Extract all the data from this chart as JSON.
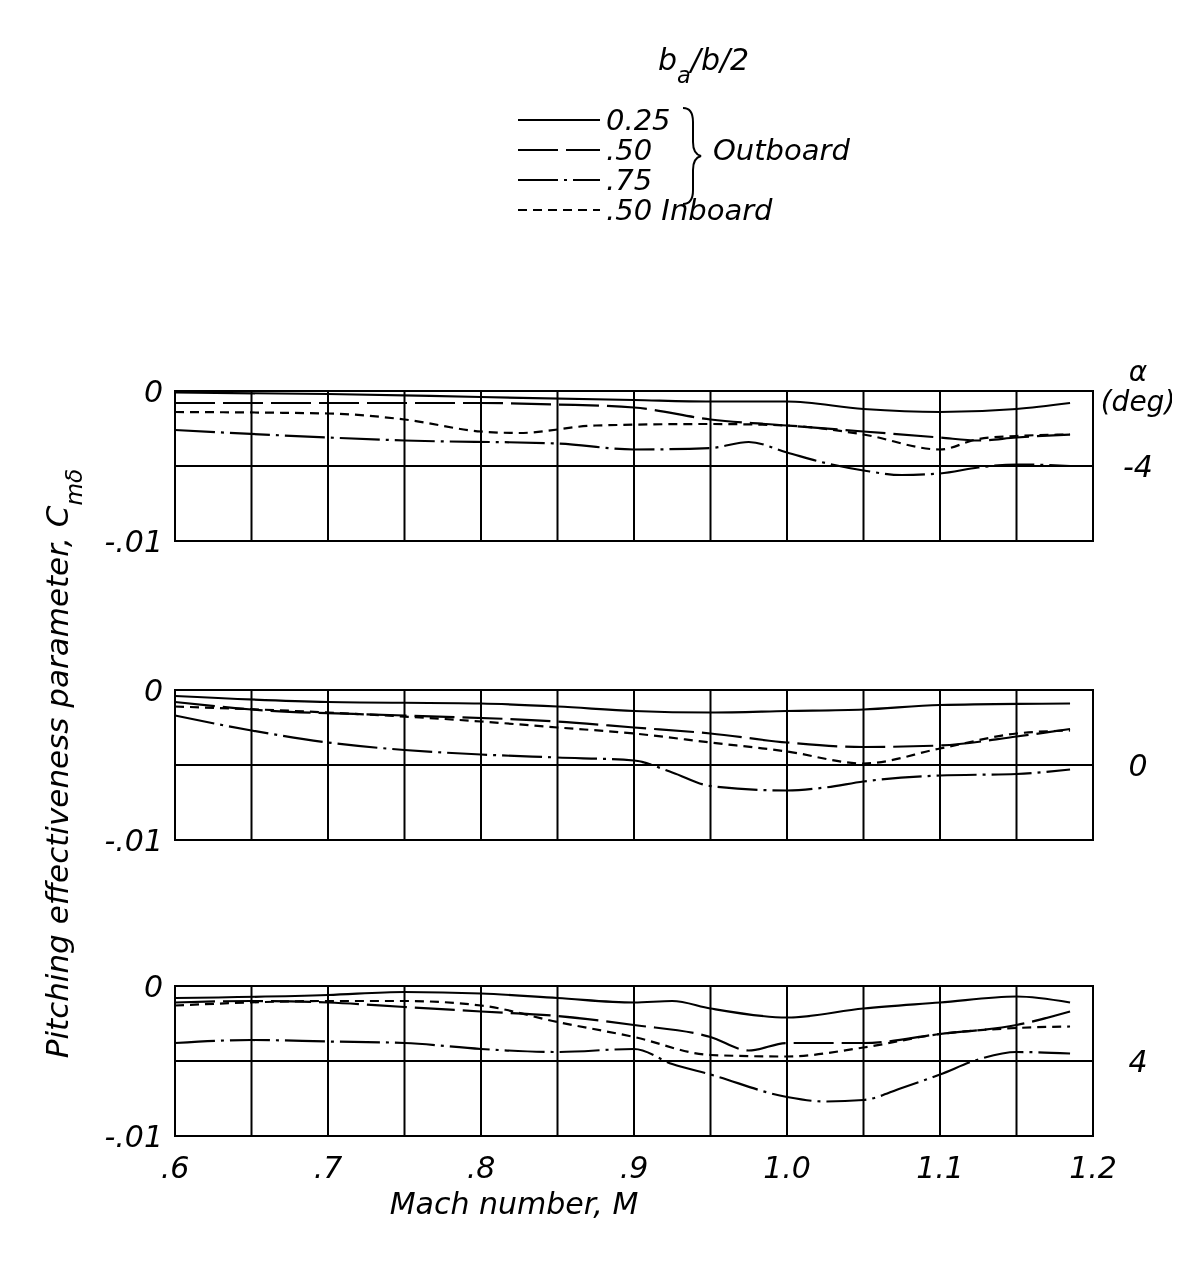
{
  "chart_data": [
    {
      "type": "line",
      "ylabel": "Pitching effectiveness parameter, C$_{mδ}$",
      "y2label": "α (deg)",
      "legend_title": "b$_{a}$/b/2",
      "legend": "top",
      "annotations": [
        "Outboard",
        "-4"
      ],
      "xlim": [
        0.6,
        1.2
      ],
      "xticks": [
        0.6,
        0.65,
        0.7,
        0.75,
        0.8,
        0.85,
        0.9,
        0.95,
        1.0,
        1.05,
        1.1,
        1.15,
        1.2
      ],
      "ylim": [
        -0.01,
        0
      ],
      "yticks": [
        {
          "value": -0.01,
          "label": "-.01"
        },
        {
          "value": -0.005,
          "label": null
        },
        {
          "value": 0,
          "label": "0"
        }
      ],
      "grid": true,
      "tick_labels": "y",
      "series": [
        {
          "name": "0.25",
          "color": "#000000",
          "line_style": "solid",
          "x": [
            0.6,
            0.7,
            0.8,
            0.9,
            0.95,
            1.0,
            1.05,
            1.1,
            1.15,
            1.185
          ],
          "values": [
            -0.0001,
            -0.0002,
            -0.0004,
            -0.0006,
            -0.0007,
            -0.0007,
            -0.0012,
            -0.0014,
            -0.0012,
            -0.0008
          ]
        },
        {
          "name": ".50",
          "color": "#000000",
          "line_style": "longdash",
          "x": [
            0.6,
            0.7,
            0.8,
            0.85,
            0.9,
            0.95,
            1.0,
            1.05,
            1.1,
            1.125,
            1.15,
            1.185
          ],
          "values": [
            -0.0008,
            -0.0008,
            -0.0008,
            -0.0009,
            -0.0011,
            -0.0019,
            -0.0023,
            -0.0027,
            -0.0031,
            -0.0033,
            -0.0031,
            -0.0029
          ]
        },
        {
          "name": ".75",
          "color": "#000000",
          "line_style": "dashdot",
          "x": [
            0.6,
            0.7,
            0.75,
            0.85,
            0.9,
            0.95,
            0.975,
            1.0,
            1.025,
            1.05,
            1.075,
            1.1,
            1.125,
            1.15,
            1.185
          ],
          "values": [
            -0.0026,
            -0.0031,
            -0.0033,
            -0.0035,
            -0.0039,
            -0.0038,
            -0.0034,
            -0.0041,
            -0.0048,
            -0.0053,
            -0.0056,
            -0.0055,
            -0.0051,
            -0.0049,
            -0.005
          ]
        },
        {
          "name": ".50 Inboard",
          "color": "#000000",
          "line_style": "dashed",
          "x": [
            0.6,
            0.7,
            0.75,
            0.8,
            0.825,
            0.875,
            0.95,
            1.0,
            1.05,
            1.1,
            1.125,
            1.15,
            1.185
          ],
          "values": [
            -0.0014,
            -0.0015,
            -0.0019,
            -0.0027,
            -0.0028,
            -0.0023,
            -0.0022,
            -0.0023,
            -0.0029,
            -0.0039,
            -0.0032,
            -0.003,
            -0.0029
          ]
        }
      ]
    },
    {
      "type": "line",
      "annotations": [
        "0"
      ],
      "xlim": [
        0.6,
        1.2
      ],
      "xticks": [
        0.6,
        0.65,
        0.7,
        0.75,
        0.8,
        0.85,
        0.9,
        0.95,
        1.0,
        1.05,
        1.1,
        1.15,
        1.2
      ],
      "ylim": [
        -0.01,
        0
      ],
      "yticks": [
        {
          "value": -0.01,
          "label": "-.01"
        },
        {
          "value": -0.005,
          "label": null
        },
        {
          "value": 0,
          "label": "0"
        }
      ],
      "grid": true,
      "tick_labels": "y",
      "series": [
        {
          "color": "#000000",
          "line_style": "solid",
          "x": [
            0.6,
            0.7,
            0.8,
            0.85,
            0.9,
            0.95,
            1.0,
            1.05,
            1.1,
            1.185
          ],
          "values": [
            -0.0004,
            -0.0008,
            -0.0009,
            -0.0011,
            -0.0014,
            -0.0015,
            -0.0014,
            -0.0013,
            -0.001,
            -0.0009
          ]
        },
        {
          "color": "#000000",
          "line_style": "longdash",
          "x": [
            0.6,
            0.65,
            0.75,
            0.85,
            0.9,
            0.95,
            1.0,
            1.05,
            1.1,
            1.15,
            1.185
          ],
          "values": [
            -0.0008,
            -0.0013,
            -0.0017,
            -0.0021,
            -0.0025,
            -0.0029,
            -0.0035,
            -0.0038,
            -0.0037,
            -0.0031,
            -0.0026
          ]
        },
        {
          "color": "#000000",
          "line_style": "dashdot",
          "x": [
            0.6,
            0.65,
            0.7,
            0.75,
            0.8,
            0.85,
            0.9,
            0.925,
            0.95,
            1.0,
            1.025,
            1.05,
            1.1,
            1.15,
            1.185
          ],
          "values": [
            -0.0017,
            -0.0027,
            -0.0035,
            -0.004,
            -0.0043,
            -0.0045,
            -0.0047,
            -0.0055,
            -0.0064,
            -0.0067,
            -0.0065,
            -0.0061,
            -0.0057,
            -0.0056,
            -0.0053
          ]
        },
        {
          "color": "#000000",
          "line_style": "dashed",
          "x": [
            0.6,
            0.7,
            0.8,
            0.85,
            0.9,
            0.95,
            1.0,
            1.05,
            1.1,
            1.15,
            1.185
          ],
          "values": [
            -0.0011,
            -0.0015,
            -0.0021,
            -0.0025,
            -0.0029,
            -0.0035,
            -0.0041,
            -0.0049,
            -0.0039,
            -0.0029,
            -0.0027
          ]
        }
      ]
    },
    {
      "type": "line",
      "xlabel": "Mach number, M",
      "annotations": [
        "4"
      ],
      "xlim": [
        0.6,
        1.2
      ],
      "xticks": [
        {
          "value": 0.6,
          "label": ".6"
        },
        {
          "value": 0.65,
          "label": null
        },
        {
          "value": 0.7,
          "label": ".7"
        },
        {
          "value": 0.75,
          "label": null
        },
        {
          "value": 0.8,
          "label": ".8"
        },
        {
          "value": 0.85,
          "label": null
        },
        {
          "value": 0.9,
          "label": ".9"
        },
        {
          "value": 0.95,
          "label": null
        },
        {
          "value": 1.0,
          "label": "1.0"
        },
        {
          "value": 1.05,
          "label": null
        },
        {
          "value": 1.1,
          "label": "1.1"
        },
        {
          "value": 1.15,
          "label": null
        },
        {
          "value": 1.2,
          "label": "1.2"
        }
      ],
      "ylim": [
        -0.01,
        0
      ],
      "yticks": [
        {
          "value": -0.01,
          "label": "-.01"
        },
        {
          "value": -0.005,
          "label": null
        },
        {
          "value": 0,
          "label": "0"
        }
      ],
      "grid": true,
      "series": [
        {
          "color": "#000000",
          "line_style": "solid",
          "x": [
            0.6,
            0.7,
            0.75,
            0.8,
            0.85,
            0.9,
            0.925,
            0.95,
            1.0,
            1.05,
            1.1,
            1.15,
            1.185
          ],
          "values": [
            -0.0008,
            -0.0006,
            -0.0004,
            -0.0005,
            -0.0008,
            -0.0011,
            -0.001,
            -0.0015,
            -0.0021,
            -0.0015,
            -0.0011,
            -0.0007,
            -0.0011
          ]
        },
        {
          "color": "#000000",
          "line_style": "longdash",
          "x": [
            0.6,
            0.65,
            0.7,
            0.75,
            0.8,
            0.85,
            0.9,
            0.95,
            0.975,
            1.0,
            1.05,
            1.1,
            1.15,
            1.185
          ],
          "values": [
            -0.0011,
            -0.001,
            -0.0011,
            -0.0014,
            -0.0017,
            -0.002,
            -0.0026,
            -0.0034,
            -0.0043,
            -0.0038,
            -0.0038,
            -0.0032,
            -0.0026,
            -0.0017
          ]
        },
        {
          "color": "#000000",
          "line_style": "dashdot",
          "x": [
            0.6,
            0.65,
            0.7,
            0.75,
            0.8,
            0.85,
            0.9,
            0.925,
            0.95,
            1.0,
            1.025,
            1.05,
            1.075,
            1.1,
            1.125,
            1.15,
            1.185
          ],
          "values": [
            -0.0038,
            -0.0036,
            -0.0037,
            -0.0038,
            -0.0042,
            -0.0044,
            -0.0042,
            -0.0052,
            -0.0059,
            -0.0074,
            -0.0077,
            -0.0076,
            -0.0068,
            -0.0059,
            -0.0049,
            -0.0044,
            -0.0045
          ]
        },
        {
          "color": "#000000",
          "line_style": "dashed",
          "x": [
            0.6,
            0.7,
            0.75,
            0.8,
            0.85,
            0.9,
            0.95,
            1.0,
            1.05,
            1.1,
            1.15,
            1.185
          ],
          "values": [
            -0.0013,
            -0.001,
            -0.001,
            -0.0013,
            -0.0024,
            -0.0034,
            -0.0046,
            -0.0047,
            -0.0041,
            -0.0032,
            -0.0028,
            -0.0027
          ]
        }
      ]
    }
  ]
}
